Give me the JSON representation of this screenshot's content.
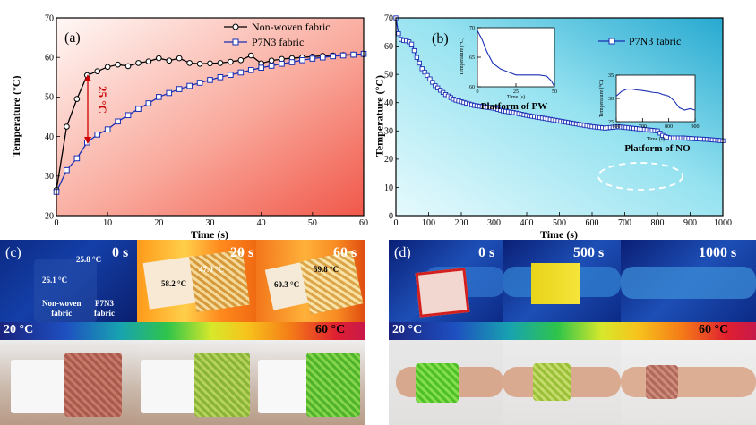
{
  "chart_data": [
    {
      "panel": "(a)",
      "type": "line",
      "xlabel": "Time (s)",
      "ylabel": "Temperature (°C)",
      "xlim": [
        0,
        60
      ],
      "ylim": [
        20,
        70
      ],
      "xticks": [
        0,
        10,
        20,
        30,
        40,
        50,
        60
      ],
      "yticks": [
        20,
        30,
        40,
        50,
        60,
        70
      ],
      "annotation": "25 °C",
      "series": [
        {
          "name": "Non-woven fabric",
          "color": "#000000",
          "x": [
            0,
            2,
            4,
            6,
            8,
            10,
            12,
            14,
            16,
            18,
            20,
            22,
            24,
            26,
            28,
            30,
            32,
            34,
            36,
            38,
            40,
            42,
            44,
            46,
            48,
            50,
            52,
            54,
            56,
            58,
            60
          ],
          "y": [
            26.5,
            42.5,
            49.5,
            55.5,
            56.5,
            57.6,
            58.2,
            57.8,
            58.6,
            59.0,
            59.8,
            59.2,
            59.8,
            58.6,
            58.4,
            58.5,
            58.6,
            58.9,
            59.3,
            60.5,
            58.5,
            59.2,
            59.6,
            59.8,
            60.0,
            60.2,
            60.4,
            60.5,
            60.6,
            60.7,
            60.8
          ]
        },
        {
          "name": "P7N3 fabric",
          "color": "#1a2fb4",
          "x": [
            0,
            2,
            4,
            6,
            8,
            10,
            12,
            14,
            16,
            18,
            20,
            22,
            24,
            26,
            28,
            30,
            32,
            34,
            36,
            38,
            40,
            42,
            44,
            46,
            48,
            50,
            52,
            54,
            56,
            58,
            60
          ],
          "y": [
            26.0,
            31.5,
            34.5,
            38.5,
            40.5,
            41.8,
            43.8,
            45.4,
            47.0,
            48.4,
            50.0,
            51.0,
            52.0,
            52.8,
            53.6,
            54.3,
            55.0,
            55.6,
            56.2,
            56.8,
            57.4,
            57.9,
            58.4,
            58.8,
            59.3,
            59.7,
            60.0,
            60.3,
            60.5,
            60.7,
            60.9
          ]
        }
      ]
    },
    {
      "panel": "(b)",
      "type": "line",
      "xlabel": "Time (s)",
      "ylabel": "Temperature (°C)",
      "xlim": [
        0,
        1000
      ],
      "ylim": [
        0,
        70
      ],
      "xticks": [
        0,
        100,
        200,
        300,
        400,
        500,
        600,
        700,
        800,
        900,
        1000
      ],
      "yticks": [
        0,
        10,
        20,
        30,
        40,
        50,
        60,
        70
      ],
      "series": [
        {
          "name": "P7N3 fabric",
          "color": "#1a2fb4",
          "x": [
            0,
            10,
            20,
            30,
            40,
            50,
            60,
            80,
            100,
            120,
            150,
            180,
            210,
            240,
            270,
            300,
            330,
            360,
            400,
            450,
            500,
            550,
            600,
            640,
            680,
            720,
            760,
            800,
            820,
            840,
            860,
            880,
            900,
            950,
            1000
          ],
          "y": [
            70,
            63,
            62,
            62,
            61.5,
            60.5,
            57,
            52,
            49,
            46,
            43,
            41,
            40,
            39,
            38.5,
            38,
            37,
            36.5,
            35.5,
            34.5,
            33.5,
            32.5,
            31.5,
            31,
            31.5,
            31,
            30.5,
            30,
            28,
            27.5,
            27.5,
            27.5,
            27.3,
            27,
            26.5
          ]
        }
      ],
      "insets": [
        {
          "title": "Platform of PW",
          "xlabel": "Time (s)",
          "ylabel": "Temperature (°C)",
          "xlim": [
            0,
            50
          ],
          "ylim": [
            60,
            70
          ],
          "xticks": [
            0,
            25,
            50
          ],
          "yticks": [
            60,
            65,
            70
          ],
          "x": [
            0,
            3,
            6,
            10,
            15,
            20,
            25,
            30,
            35,
            40,
            45,
            48,
            50
          ],
          "y": [
            69.5,
            68,
            66,
            64,
            63,
            62.5,
            62,
            62,
            62,
            62,
            61.8,
            61,
            60
          ]
        },
        {
          "title": "Platform of NO",
          "xlabel": "Time (s)",
          "ylabel": "Temperature (°C)",
          "xlim": [
            600,
            900
          ],
          "ylim": [
            25,
            35
          ],
          "xticks": [
            600,
            700,
            800,
            900
          ],
          "yticks": [
            25,
            30,
            35
          ],
          "x": [
            600,
            620,
            640,
            660,
            680,
            700,
            720,
            740,
            760,
            780,
            800,
            820,
            840,
            860,
            880,
            900
          ],
          "y": [
            30.5,
            31.5,
            32,
            32,
            31.8,
            31.7,
            31.5,
            31.3,
            31.2,
            30.8,
            30.5,
            29.5,
            28,
            27.5,
            27.8,
            27.5
          ]
        }
      ]
    }
  ],
  "panel_c": {
    "label": "(c)",
    "frames": [
      {
        "time": "0 s",
        "temps": [
          "25.8 °C",
          "26.1 °C"
        ],
        "captions": [
          "Non-woven",
          "fabric",
          "P7N3",
          "fabric"
        ]
      },
      {
        "time": "20 s",
        "temps": [
          "47.0 °C",
          "58.2 °C"
        ]
      },
      {
        "time": "60 s",
        "temps": [
          "59.8 °C",
          "60.3 °C"
        ]
      }
    ],
    "scale_min": "20 °C",
    "scale_max": "60 °C"
  },
  "panel_d": {
    "label": "(d)",
    "frames": [
      {
        "time": "0 s"
      },
      {
        "time": "500 s"
      },
      {
        "time": "1000 s"
      }
    ],
    "scale_min": "20 °C",
    "scale_max": "60 °C"
  },
  "colors": {
    "blue_series": "#1a2fb4",
    "black_series": "#000000",
    "annotation_red": "#cc0000"
  }
}
